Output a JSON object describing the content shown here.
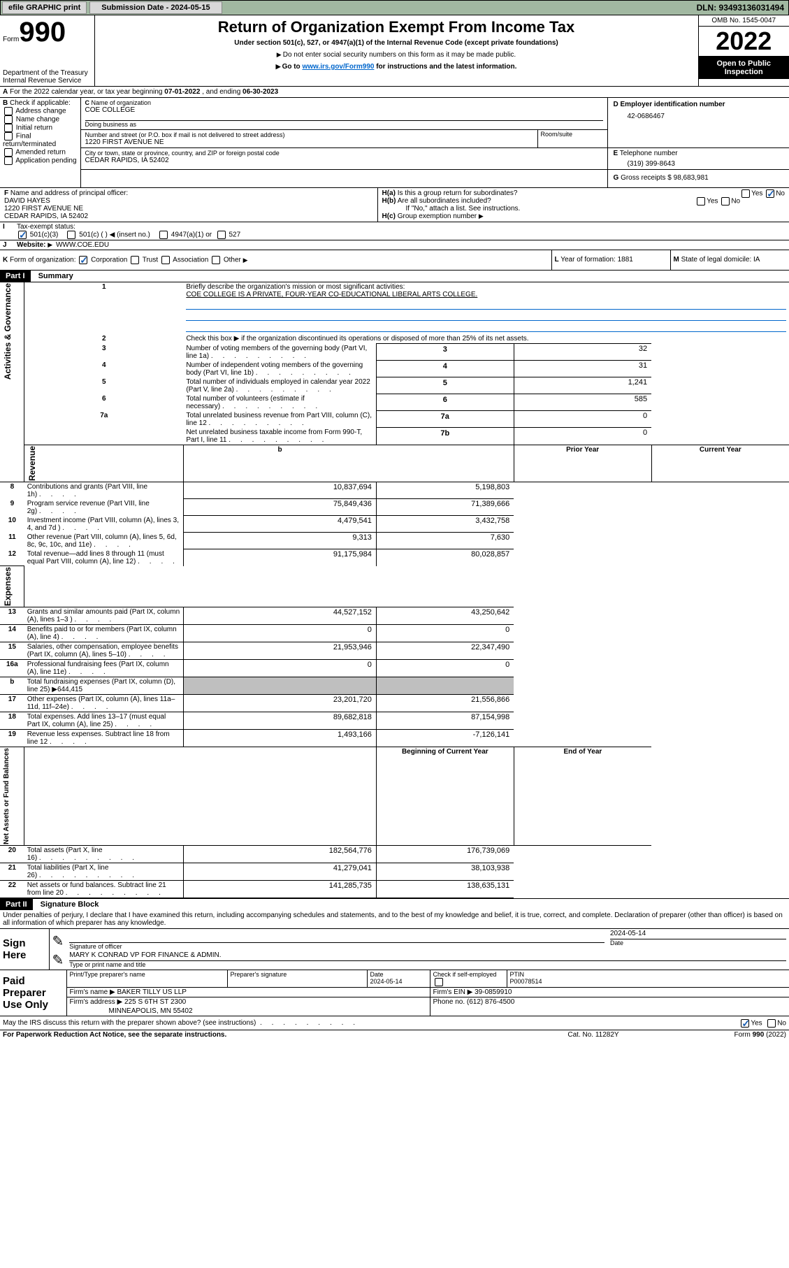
{
  "topbar": {
    "efile": "efile GRAPHIC print",
    "submission_label": "Submission Date - 2024-05-15",
    "dln": "DLN: 93493136031494"
  },
  "header": {
    "form_word": "Form",
    "form_num": "990",
    "title": "Return of Organization Exempt From Income Tax",
    "subtitle": "Under section 501(c), 527, or 4947(a)(1) of the Internal Revenue Code (except private foundations)",
    "note1": "Do not enter social security numbers on this form as it may be made public.",
    "note2_pre": "Go to ",
    "note2_link": "www.irs.gov/Form990",
    "note2_post": " for instructions and the latest information.",
    "dept": "Department of the Treasury\nInternal Revenue Service",
    "omb": "OMB No. 1545-0047",
    "year": "2022",
    "open": "Open to Public Inspection"
  },
  "A": {
    "text_pre": "For the 2022 calendar year, or tax year beginning ",
    "begin": "07-01-2022",
    "mid": "   , and ending ",
    "end": "06-30-2023"
  },
  "B": {
    "label": "Check if applicable:",
    "opts": [
      "Address change",
      "Name change",
      "Initial return",
      "Final return/terminated",
      "Amended return",
      "Application pending"
    ]
  },
  "C": {
    "name_label": "Name of organization",
    "name": "COE COLLEGE",
    "dba_label": "Doing business as",
    "dba": "",
    "street_label": "Number and street (or P.O. box if mail is not delivered to street address)",
    "room_label": "Room/suite",
    "street": "1220 FIRST AVENUE NE",
    "city_label": "City or town, state or province, country, and ZIP or foreign postal code",
    "city": "CEDAR RAPIDS, IA  52402"
  },
  "D": {
    "label": "Employer identification number",
    "value": "42-0686467"
  },
  "E": {
    "label": "Telephone number",
    "value": "(319) 399-8643"
  },
  "G": {
    "label": "Gross receipts $",
    "value": "98,683,981"
  },
  "F": {
    "label": "Name and address of principal officer:",
    "name": "DAVID HAYES",
    "addr1": "1220 FIRST AVENUE NE",
    "addr2": "CEDAR RAPIDS, IA  52402"
  },
  "H": {
    "a": "Is this a group return for subordinates?",
    "b": "Are all subordinates included?",
    "b_note": "If \"No,\" attach a list. See instructions.",
    "c": "Group exemption number"
  },
  "tax_status": {
    "label": "Tax-exempt status:",
    "c3": "501(c)(3)",
    "c_blank": "501(c) (  )",
    "insert": "(insert no.)",
    "a1": "4947(a)(1) or",
    "s527": "527"
  },
  "J": {
    "label": "Website:",
    "value": "WWW.COE.EDU"
  },
  "K": {
    "label": "Form of organization:",
    "opts": [
      "Corporation",
      "Trust",
      "Association",
      "Other"
    ]
  },
  "L": {
    "label": "Year of formation:",
    "value": "1881"
  },
  "M": {
    "label": "State of legal domicile:",
    "value": "IA"
  },
  "part1": {
    "title": "Part I",
    "heading": "Summary",
    "line1_label": "Briefly describe the organization's mission or most significant activities:",
    "line1_text": "COE COLLEGE IS A PRIVATE, FOUR-YEAR CO-EDUCATIONAL LIBERAL ARTS COLLEGE.",
    "line2": "Check this box ▶       if the organization discontinued its operations or disposed of more than 25% of its net assets.",
    "rows_gov": [
      {
        "n": "3",
        "t": "Number of voting members of the governing body (Part VI, line 1a)",
        "rn": "3",
        "v": "32"
      },
      {
        "n": "4",
        "t": "Number of independent voting members of the governing body (Part VI, line 1b)",
        "rn": "4",
        "v": "31"
      },
      {
        "n": "5",
        "t": "Total number of individuals employed in calendar year 2022 (Part V, line 2a)",
        "rn": "5",
        "v": "1,241"
      },
      {
        "n": "6",
        "t": "Total number of volunteers (estimate if necessary)",
        "rn": "6",
        "v": "585"
      },
      {
        "n": "7a",
        "t": "Total unrelated business revenue from Part VIII, column (C), line 12",
        "rn": "7a",
        "v": "0"
      },
      {
        "n": "",
        "t": "Net unrelated business taxable income from Form 990-T, Part I, line 11",
        "rn": "7b",
        "v": "0"
      }
    ],
    "col_prior": "Prior Year",
    "col_current": "Current Year",
    "rev_rows": [
      {
        "n": "8",
        "t": "Contributions and grants (Part VIII, line 1h)",
        "p": "10,837,694",
        "c": "5,198,803"
      },
      {
        "n": "9",
        "t": "Program service revenue (Part VIII, line 2g)",
        "p": "75,849,436",
        "c": "71,389,666"
      },
      {
        "n": "10",
        "t": "Investment income (Part VIII, column (A), lines 3, 4, and 7d )",
        "p": "4,479,541",
        "c": "3,432,758"
      },
      {
        "n": "11",
        "t": "Other revenue (Part VIII, column (A), lines 5, 6d, 8c, 9c, 10c, and 11e)",
        "p": "9,313",
        "c": "7,630"
      },
      {
        "n": "12",
        "t": "Total revenue—add lines 8 through 11 (must equal Part VIII, column (A), line 12)",
        "p": "91,175,984",
        "c": "80,028,857"
      }
    ],
    "exp_rows": [
      {
        "n": "13",
        "t": "Grants and similar amounts paid (Part IX, column (A), lines 1–3 )",
        "p": "44,527,152",
        "c": "43,250,642"
      },
      {
        "n": "14",
        "t": "Benefits paid to or for members (Part IX, column (A), line 4)",
        "p": "0",
        "c": "0"
      },
      {
        "n": "15",
        "t": "Salaries, other compensation, employee benefits (Part IX, column (A), lines 5–10)",
        "p": "21,953,946",
        "c": "22,347,490"
      },
      {
        "n": "16a",
        "t": "Professional fundraising fees (Part IX, column (A), line 11e)",
        "p": "0",
        "c": "0"
      },
      {
        "n": "b",
        "t": "Total fundraising expenses (Part IX, column (D), line 25) ▶644,415",
        "p": "",
        "c": "",
        "grey": true
      },
      {
        "n": "17",
        "t": "Other expenses (Part IX, column (A), lines 11a–11d, 11f–24e)",
        "p": "23,201,720",
        "c": "21,556,866"
      },
      {
        "n": "18",
        "t": "Total expenses. Add lines 13–17 (must equal Part IX, column (A), line 25)",
        "p": "89,682,818",
        "c": "87,154,998"
      },
      {
        "n": "19",
        "t": "Revenue less expenses. Subtract line 18 from line 12",
        "p": "1,493,166",
        "c": "-7,126,141"
      }
    ],
    "col_beg": "Beginning of Current Year",
    "col_end": "End of Year",
    "net_rows": [
      {
        "n": "20",
        "t": "Total assets (Part X, line 16)",
        "p": "182,564,776",
        "c": "176,739,069"
      },
      {
        "n": "21",
        "t": "Total liabilities (Part X, line 26)",
        "p": "41,279,041",
        "c": "38,103,938"
      },
      {
        "n": "22",
        "t": "Net assets or fund balances. Subtract line 21 from line 20",
        "p": "141,285,735",
        "c": "138,635,131"
      }
    ],
    "side_gov": "Activities & Governance",
    "side_rev": "Revenue",
    "side_exp": "Expenses",
    "side_net": "Net Assets or Fund Balances"
  },
  "part2": {
    "title": "Part II",
    "heading": "Signature Block",
    "decl": "Under penalties of perjury, I declare that I have examined this return, including accompanying schedules and statements, and to the best of my knowledge and belief, it is true, correct, and complete. Declaration of preparer (other than officer) is based on all information of which preparer has any knowledge.",
    "sign_here": "Sign Here",
    "sig_officer": "Signature of officer",
    "sig_date": "2024-05-14",
    "date_label": "Date",
    "officer_name": "MARY K CONRAD  VP FOR FINANCE & ADMIN.",
    "officer_title_label": "Type or print name and title",
    "paid": "Paid Preparer Use Only",
    "prep_name_label": "Print/Type preparer's name",
    "prep_sig_label": "Preparer's signature",
    "prep_date_label": "Date",
    "prep_date": "2024-05-14",
    "self_emp": "Check         if self-employed",
    "ptin_label": "PTIN",
    "ptin": "P00078514",
    "firm_name_label": "Firm's name    ▶",
    "firm_name": "BAKER TILLY US LLP",
    "firm_ein_label": "Firm's EIN ▶",
    "firm_ein": "39-0859910",
    "firm_addr_label": "Firm's address ▶",
    "firm_addr1": "225 S 6TH ST 2300",
    "firm_addr2": "MINNEAPOLIS, MN  55402",
    "phone_label": "Phone no.",
    "phone": "(612) 876-4500",
    "discuss": "May the IRS discuss this return with the preparer shown above? (see instructions)",
    "yes": "Yes",
    "no": "No"
  },
  "footer": {
    "left": "For Paperwork Reduction Act Notice, see the separate instructions.",
    "mid": "Cat. No. 11282Y",
    "right": "Form 990 (2022)"
  }
}
